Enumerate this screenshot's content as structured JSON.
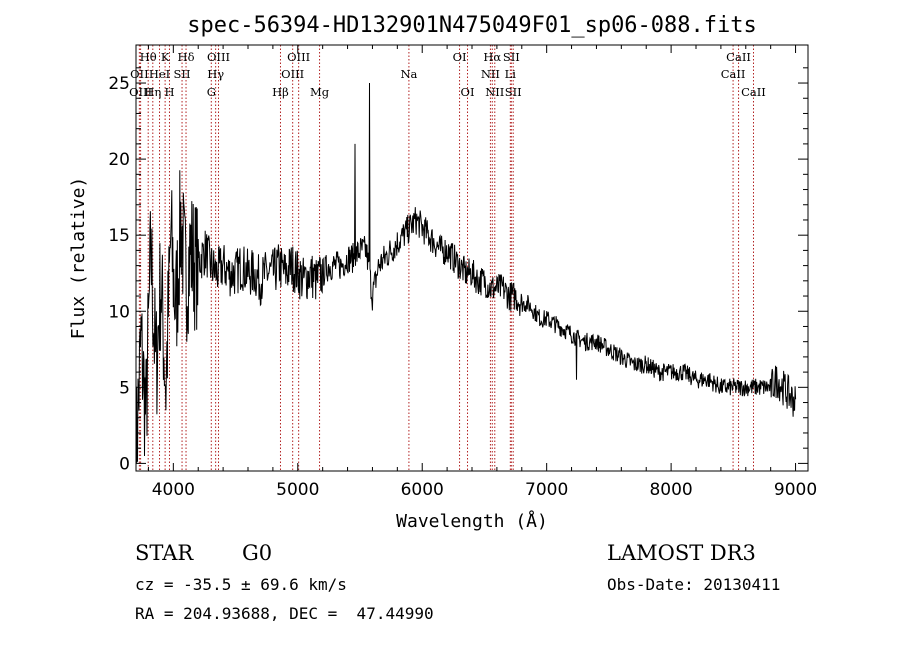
{
  "chart_data": {
    "type": "line",
    "title": "spec-56394-HD132901N475049F01_sp06-088.fits",
    "xlabel": "Wavelength (Å)",
    "ylabel": "Flux (relative)",
    "xlim": [
      3700,
      9100
    ],
    "ylim": [
      -0.5,
      27.5
    ],
    "x_ticks": [
      4000,
      5000,
      6000,
      7000,
      8000,
      9000
    ],
    "y_ticks": [
      0,
      5,
      10,
      15,
      20,
      25
    ],
    "grid": false,
    "line_color": "#000000",
    "marker_color": "#b22222",
    "spectrum": {
      "x": [
        3700,
        3740,
        3780,
        3820,
        3860,
        3900,
        3940,
        3980,
        4020,
        4060,
        4100,
        4140,
        4180,
        4220,
        4260,
        4300,
        4350,
        4400,
        4450,
        4500,
        4550,
        4600,
        4650,
        4700,
        4750,
        4800,
        4850,
        4900,
        4950,
        5000,
        5050,
        5100,
        5150,
        5200,
        5250,
        5300,
        5350,
        5400,
        5450,
        5500,
        5550,
        5600,
        5650,
        5700,
        5750,
        5800,
        5850,
        5900,
        5950,
        6000,
        6050,
        6100,
        6150,
        6200,
        6250,
        6300,
        6350,
        6400,
        6450,
        6500,
        6550,
        6600,
        6650,
        6700,
        6750,
        6800,
        6850,
        6900,
        6950,
        7000,
        7100,
        7200,
        7300,
        7400,
        7500,
        7600,
        7700,
        7800,
        7900,
        8000,
        8100,
        8200,
        8300,
        8400,
        8500,
        8600,
        8700,
        8800,
        8850,
        8900,
        8950,
        9000
      ],
      "y": [
        0.5,
        8,
        3,
        14,
        6,
        12,
        5,
        15,
        10,
        16,
        12,
        14,
        13,
        13.5,
        14,
        13,
        12.5,
        13,
        12.5,
        12.5,
        13,
        12.5,
        12.5,
        12,
        12.5,
        12.5,
        13,
        12.5,
        13,
        12.5,
        12,
        12.5,
        12,
        12.5,
        13,
        13,
        13,
        13.5,
        13.5,
        14,
        14,
        11,
        13,
        13.5,
        14,
        14.5,
        15,
        15.5,
        16,
        15.5,
        15,
        14.5,
        14,
        14,
        13.5,
        13,
        12.5,
        12.5,
        12,
        12,
        11.5,
        11.5,
        11.5,
        11,
        11,
        10.5,
        10.5,
        10,
        9.5,
        9.5,
        9,
        8.5,
        8,
        8,
        7.5,
        7,
        6.5,
        6.5,
        6,
        6,
        6,
        5.5,
        5.5,
        5,
        5,
        5,
        5,
        5,
        5.5,
        5,
        4.5,
        4
      ]
    },
    "spectral_lines": [
      {
        "name": "Hθ",
        "x": 3798,
        "row": 1
      },
      {
        "name": "OII",
        "x": 3727,
        "row": 2
      },
      {
        "name": "OIII",
        "x": 3737,
        "row": 3
      },
      {
        "name": "K",
        "x": 3934,
        "row": 1
      },
      {
        "name": "HeI",
        "x": 3889,
        "row": 2
      },
      {
        "name": "Hη",
        "x": 3835,
        "row": 3
      },
      {
        "name": "Hδ",
        "x": 4102,
        "row": 1
      },
      {
        "name": "SII",
        "x": 4070,
        "row": 2
      },
      {
        "name": "H",
        "x": 3969,
        "row": 3
      },
      {
        "name": "OIII",
        "x": 4363,
        "row": 1
      },
      {
        "name": "Hγ",
        "x": 4340,
        "row": 2
      },
      {
        "name": "G",
        "x": 4305,
        "row": 3
      },
      {
        "name": "OIII",
        "x": 5007,
        "row": 1
      },
      {
        "name": "OIII",
        "x": 4959,
        "row": 2
      },
      {
        "name": "Hβ",
        "x": 4861,
        "row": 3
      },
      {
        "name": "Mg",
        "x": 5175,
        "row": 3
      },
      {
        "name": "Na",
        "x": 5893,
        "row": 2
      },
      {
        "name": "OI",
        "x": 6300,
        "row": 1
      },
      {
        "name": "OI",
        "x": 6364,
        "row": 3
      },
      {
        "name": "Hα",
        "x": 6563,
        "row": 1
      },
      {
        "name": "SII",
        "x": 6716,
        "row": 1
      },
      {
        "name": "NII",
        "x": 6548,
        "row": 2
      },
      {
        "name": "Li",
        "x": 6708,
        "row": 2
      },
      {
        "name": "NII",
        "x": 6583,
        "row": 3
      },
      {
        "name": "SII",
        "x": 6731,
        "row": 3
      },
      {
        "name": "CaII",
        "x": 8542,
        "row": 1
      },
      {
        "name": "CaII",
        "x": 8498,
        "row": 2
      },
      {
        "name": "CaII",
        "x": 8662,
        "row": 3
      }
    ]
  },
  "info": {
    "object_class": "STAR",
    "subclass": "G0",
    "survey": "LAMOST DR3",
    "redshift": "cz = -35.5 ± 69.6 km/s",
    "obs_date": "Obs-Date: 20130411",
    "coordinates": "RA = 204.93688, DEC =  47.44990"
  }
}
